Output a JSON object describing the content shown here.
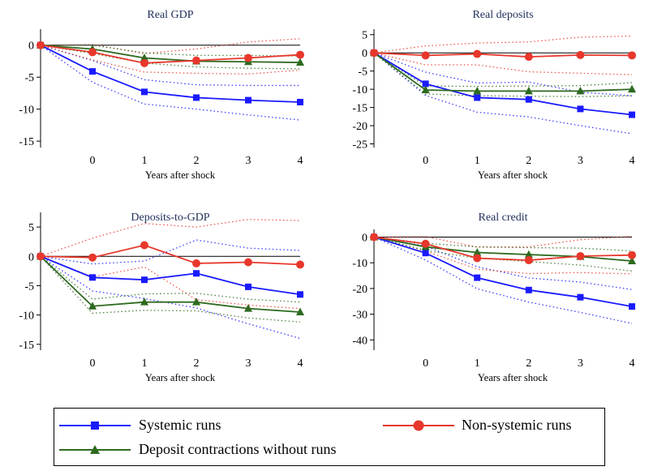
{
  "colors": {
    "systemic": "#1a1aff",
    "non_systemic": "#e8372c",
    "contraction": "#2d6a1f",
    "axis": "#000000"
  },
  "chart_data": [
    {
      "type": "line",
      "title": "Real GDP",
      "xlabel": "Years after shock",
      "x": [
        -1,
        0,
        1,
        2,
        3,
        4
      ],
      "x_ticks": [
        0,
        1,
        2,
        3,
        4
      ],
      "ylim": [
        -16,
        2.5
      ],
      "y_ticks": [
        0,
        -5,
        -10,
        -15
      ],
      "series": [
        {
          "name": "Systemic runs",
          "key": "systemic",
          "values": [
            0,
            -4.1,
            -7.3,
            -8.2,
            -8.6,
            -8.9
          ],
          "ci_low": [
            0,
            -5.8,
            -9.2,
            -10.0,
            -10.9,
            -11.7
          ],
          "ci_high": [
            0,
            -2.4,
            -5.4,
            -6.2,
            -6.3,
            -6.3
          ]
        },
        {
          "name": "Non-systemic runs",
          "key": "non_systemic",
          "values": [
            0,
            -1.1,
            -2.8,
            -2.4,
            -2.0,
            -1.5
          ],
          "ci_low": [
            0,
            -2.3,
            -4.2,
            -4.4,
            -4.5,
            -3.9
          ],
          "ci_high": [
            0,
            0.1,
            -1.3,
            -0.6,
            0.5,
            1.0
          ]
        },
        {
          "name": "Deposit contractions without runs",
          "key": "contraction",
          "values": [
            0,
            -0.6,
            -2.0,
            -2.5,
            -2.6,
            -2.7
          ],
          "ci_low": [
            0,
            -1.3,
            -2.8,
            -3.4,
            -3.6,
            -3.7
          ],
          "ci_high": [
            0,
            0.0,
            -1.2,
            -1.6,
            -1.6,
            -1.7
          ]
        }
      ]
    },
    {
      "type": "line",
      "title": "Real deposits",
      "xlabel": "Years after shock",
      "x": [
        -1,
        0,
        1,
        2,
        3,
        4
      ],
      "x_ticks": [
        0,
        1,
        2,
        3,
        4
      ],
      "ylim": [
        -26,
        6.5
      ],
      "y_ticks": [
        5,
        0,
        -5,
        -10,
        -15,
        -20,
        -25
      ],
      "series": [
        {
          "name": "Systemic runs",
          "key": "systemic",
          "values": [
            0,
            -8.5,
            -12.3,
            -12.8,
            -15.4,
            -17.0
          ],
          "ci_low": [
            0,
            -11.7,
            -16.3,
            -17.6,
            -20.0,
            -22.2
          ],
          "ci_high": [
            0,
            -5.3,
            -8.3,
            -8.0,
            -10.8,
            -11.8
          ]
        },
        {
          "name": "Non-systemic runs",
          "key": "non_systemic",
          "values": [
            0,
            -0.7,
            -0.3,
            -1.1,
            -0.6,
            -0.7
          ],
          "ci_low": [
            0,
            -3.3,
            -3.3,
            -5.2,
            -5.6,
            -6.0
          ],
          "ci_high": [
            0,
            1.9,
            2.7,
            3.0,
            4.3,
            4.6
          ]
        },
        {
          "name": "Deposit contractions without runs",
          "key": "contraction",
          "values": [
            0,
            -10.2,
            -10.5,
            -10.5,
            -10.5,
            -10.0
          ],
          "ci_low": [
            0,
            -11.3,
            -11.8,
            -11.9,
            -12.0,
            -11.8
          ],
          "ci_high": [
            0,
            -9.1,
            -9.2,
            -9.1,
            -9.0,
            -8.2
          ]
        }
      ]
    },
    {
      "type": "line",
      "title": "Deposits-to-GDP",
      "xlabel": "Years after shock",
      "x": [
        -1,
        0,
        1,
        2,
        3,
        4
      ],
      "x_ticks": [
        0,
        1,
        2,
        3,
        4
      ],
      "ylim": [
        -16,
        7.5
      ],
      "y_ticks": [
        5,
        0,
        -5,
        -10,
        -15
      ],
      "series": [
        {
          "name": "Systemic runs",
          "key": "systemic",
          "values": [
            0,
            -3.6,
            -4.0,
            -2.9,
            -5.2,
            -6.5
          ],
          "ci_low": [
            0,
            -5.9,
            -7.2,
            -8.8,
            -11.5,
            -14.0
          ],
          "ci_high": [
            0,
            -1.3,
            -0.8,
            2.8,
            1.4,
            1.0
          ]
        },
        {
          "name": "Non-systemic runs",
          "key": "non_systemic",
          "values": [
            0,
            -0.2,
            1.9,
            -1.2,
            -1.0,
            -1.4
          ],
          "ci_low": [
            0,
            -3.5,
            -1.8,
            -7.4,
            -8.3,
            -8.9
          ],
          "ci_high": [
            0,
            3.1,
            5.6,
            5.0,
            6.3,
            6.1
          ]
        },
        {
          "name": "Deposit contractions without runs",
          "key": "contraction",
          "values": [
            0,
            -8.5,
            -7.8,
            -7.8,
            -8.9,
            -9.5
          ],
          "ci_low": [
            0,
            -9.7,
            -9.2,
            -9.3,
            -10.5,
            -11.2
          ],
          "ci_high": [
            0,
            -7.3,
            -6.4,
            -6.3,
            -7.3,
            -7.8
          ]
        }
      ]
    },
    {
      "type": "line",
      "title": "Real credit",
      "xlabel": "Years after shock",
      "x": [
        -1,
        0,
        1,
        2,
        3,
        4
      ],
      "x_ticks": [
        0,
        1,
        2,
        3,
        4
      ],
      "ylim": [
        -44,
        3
      ],
      "y_ticks": [
        0,
        -10,
        -20,
        -30,
        -40
      ],
      "series": [
        {
          "name": "Systemic runs",
          "key": "systemic",
          "values": [
            0,
            -6.2,
            -15.8,
            -20.6,
            -23.4,
            -27.0
          ],
          "ci_low": [
            0,
            -8.9,
            -20.1,
            -25.3,
            -29.3,
            -33.6
          ],
          "ci_high": [
            0,
            -3.5,
            -11.5,
            -15.9,
            -17.5,
            -20.4
          ]
        },
        {
          "name": "Non-systemic runs",
          "key": "non_systemic",
          "values": [
            0,
            -2.6,
            -8.2,
            -9.0,
            -7.4,
            -7.0
          ],
          "ci_low": [
            0,
            -5.4,
            -12.5,
            -14.2,
            -13.8,
            -14.3
          ],
          "ci_high": [
            0,
            0.2,
            -3.9,
            -3.8,
            -1.0,
            0.3
          ]
        },
        {
          "name": "Deposit contractions without runs",
          "key": "contraction",
          "values": [
            0,
            -3.8,
            -6.0,
            -6.8,
            -7.6,
            -9.3
          ],
          "ci_low": [
            0,
            -5.2,
            -8.2,
            -9.5,
            -10.9,
            -13.2
          ],
          "ci_high": [
            0,
            -2.4,
            -3.8,
            -4.1,
            -4.3,
            -5.4
          ]
        }
      ]
    }
  ],
  "legend": {
    "systemic": "Systemic runs",
    "non_systemic": "Non-systemic runs",
    "contraction": "Deposit contractions without runs"
  }
}
